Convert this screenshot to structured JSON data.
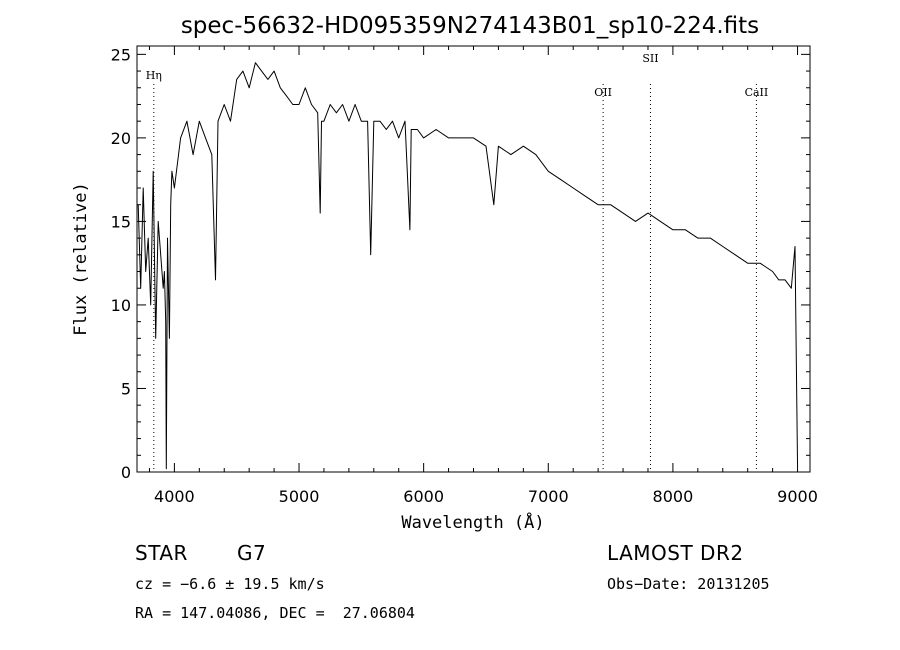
{
  "chart_data": {
    "type": "line",
    "title": "spec-56632-HD095359N274143B01_sp10-224.fits",
    "xlabel": "Wavelength (Å)",
    "ylabel": "Flux (relative)",
    "xlim": [
      3700,
      9100
    ],
    "ylim": [
      0,
      25.5
    ],
    "xticks": [
      4000,
      5000,
      6000,
      7000,
      8000,
      9000
    ],
    "yticks": [
      0,
      5,
      10,
      15,
      20,
      25
    ],
    "grid": false,
    "line_markers": [
      {
        "label": "Hη",
        "wavelength": 3835
      },
      {
        "label": "OII",
        "wavelength": 7440
      },
      {
        "label": "SII",
        "wavelength": 7820
      },
      {
        "label": "CaII",
        "wavelength": 8670
      }
    ],
    "series": [
      {
        "x": [
          3710,
          3730,
          3750,
          3770,
          3790,
          3810,
          3830,
          3850,
          3870,
          3890,
          3910,
          3920,
          3930,
          3935,
          3945,
          3960,
          3970,
          3980,
          4000,
          4050,
          4100,
          4150,
          4200,
          4250,
          4300,
          4330,
          4350,
          4400,
          4450,
          4500,
          4550,
          4600,
          4650,
          4700,
          4750,
          4800,
          4850,
          4900,
          4950,
          5000,
          5050,
          5100,
          5150,
          5170,
          5180,
          5200,
          5250,
          5300,
          5350,
          5400,
          5450,
          5500,
          5550,
          5575,
          5600,
          5650,
          5700,
          5750,
          5800,
          5850,
          5890,
          5900,
          5950,
          6000,
          6100,
          6200,
          6300,
          6400,
          6500,
          6563,
          6600,
          6700,
          6800,
          6900,
          7000,
          7100,
          7200,
          7300,
          7400,
          7500,
          7600,
          7700,
          7800,
          7900,
          8000,
          8100,
          8200,
          8300,
          8400,
          8500,
          8600,
          8700,
          8800,
          8850,
          8900,
          8950,
          8980,
          9000
        ],
        "y": [
          16,
          11,
          17,
          12,
          14,
          10,
          18,
          8,
          15,
          13,
          11,
          12,
          9,
          0.2,
          14,
          8,
          16,
          18,
          17,
          20,
          21,
          19,
          21,
          20,
          19,
          11.5,
          21,
          22,
          21,
          23.5,
          24,
          23,
          24.5,
          24,
          23.5,
          24,
          23,
          22.5,
          22,
          22,
          23,
          22,
          21.5,
          15.5,
          21,
          21,
          22,
          21.5,
          22,
          21,
          22,
          21,
          21,
          13,
          21,
          21,
          20.5,
          21,
          20,
          21,
          14.5,
          20.5,
          20.5,
          20,
          20.5,
          20,
          20,
          20,
          19.5,
          16,
          19.5,
          19,
          19.5,
          19,
          18,
          17.5,
          17,
          16.5,
          16,
          16,
          15.5,
          15,
          15.5,
          15,
          14.5,
          14.5,
          14,
          14,
          13.5,
          13,
          12.5,
          12.5,
          12,
          11.5,
          11.5,
          11,
          13.5,
          0.5
        ]
      }
    ]
  },
  "footer": {
    "object_type": "STAR",
    "subclass": "G7",
    "survey": "LAMOST DR2",
    "redshift": "cz = −6.6 ± 19.5 km/s",
    "obs_date": "Obs−Date: 20131205",
    "coords": "RA = 147.04086, DEC =  27.06804"
  }
}
